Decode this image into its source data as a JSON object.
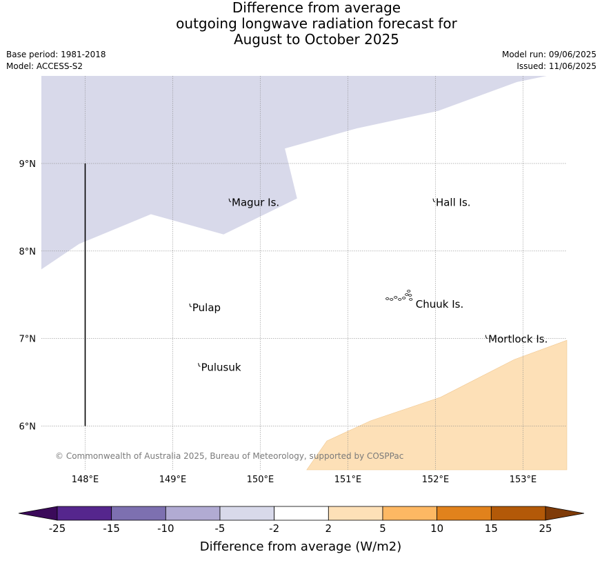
{
  "title": {
    "line1": "Difference from average",
    "line2": "outgoing longwave radiation forecast for",
    "line3": "August to October 2025"
  },
  "meta": {
    "base_period": "Base period: 1981-2018",
    "model": "Model: ACCESS-S2",
    "model_run": "Model run: 09/06/2025",
    "issued": "Issued: 11/06/2025"
  },
  "map": {
    "lon_range": [
      147.5,
      153.5
    ],
    "lat_range": [
      5.5,
      10.0
    ],
    "lon_ticks": [
      148,
      149,
      150,
      151,
      152,
      153
    ],
    "lon_tick_labels": [
      "148°E",
      "149°E",
      "150°E",
      "151°E",
      "152°E",
      "153°E"
    ],
    "lat_ticks": [
      9,
      8,
      7,
      6
    ],
    "lat_tick_labels": [
      "9°N",
      "8°N",
      "7°N",
      "6°N"
    ],
    "grid": true,
    "regions": [
      {
        "category": "-5 to -2",
        "color": "#d8d9ea",
        "polygon": [
          [
            147.5,
            10.0
          ],
          [
            153.27,
            10.0
          ],
          [
            152.93,
            9.93
          ],
          [
            152.03,
            9.6
          ],
          [
            151.1,
            9.4
          ],
          [
            150.28,
            9.17
          ],
          [
            150.42,
            8.6
          ],
          [
            149.58,
            8.19
          ],
          [
            148.75,
            8.42
          ],
          [
            147.93,
            8.08
          ],
          [
            147.5,
            7.79
          ]
        ]
      },
      {
        "category": "2 to 5",
        "color": "#fde0b7",
        "polygon": [
          [
            150.53,
            5.5
          ],
          [
            150.76,
            5.83
          ],
          [
            151.26,
            6.06
          ],
          [
            152.06,
            6.33
          ],
          [
            152.9,
            6.76
          ],
          [
            153.5,
            6.98
          ],
          [
            153.5,
            5.5
          ]
        ]
      }
    ],
    "islands": [
      {
        "name": "Magur Is.",
        "lon": 149.65,
        "lat": 8.56
      },
      {
        "name": "Hall Is.",
        "lon": 151.98,
        "lat": 8.56
      },
      {
        "name": "Pulap",
        "lon": 149.2,
        "lat": 7.36
      },
      {
        "name": "Chuuk Is.",
        "lon": 151.75,
        "lat": 7.4
      },
      {
        "name": "Mortlock Is.",
        "lon": 152.58,
        "lat": 7.0
      },
      {
        "name": "Pulusuk",
        "lon": 149.3,
        "lat": 6.68
      }
    ],
    "meridian_line": {
      "lon": 148.0,
      "lat_from": 6.0,
      "lat_to": 9.0
    },
    "copyright": "© Commonwealth of Australia 2025, Bureau of Meteorology, supported by COSPPac"
  },
  "colorbar": {
    "label": "Difference from average (W/m2)",
    "boundaries": [
      "-25",
      "-15",
      "-10",
      "-5",
      "-2",
      "2",
      "5",
      "10",
      "15",
      "25"
    ],
    "colors": [
      "#55268d",
      "#7d70b0",
      "#b1abd3",
      "#d8d9ea",
      "#ffffff",
      "#fde0b7",
      "#fdb863",
      "#e1821c",
      "#b35908"
    ],
    "under_color": "#3b0a5a",
    "over_color": "#7f3b08"
  }
}
